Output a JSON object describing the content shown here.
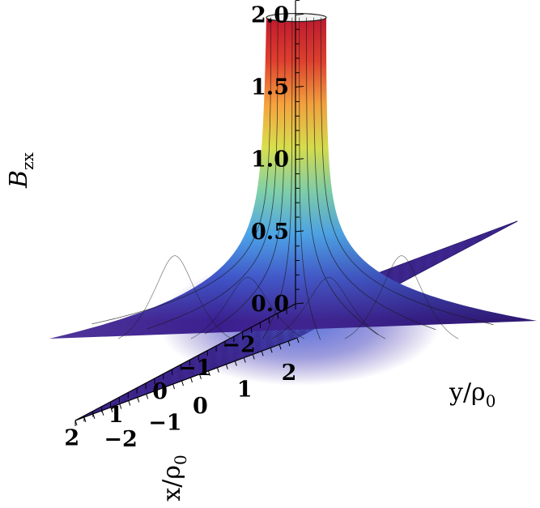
{
  "chart_data": {
    "type": "surface3d",
    "zlabel": "B",
    "zlabel_sub": "zx",
    "xlabel": "x/ρ",
    "xlabel_sub": "0",
    "ylabel": "y/ρ",
    "ylabel_sub": "0",
    "xlim": [
      -2.5,
      2.5
    ],
    "ylim": [
      -2.5,
      2.5
    ],
    "zlim": [
      0,
      2.1
    ],
    "x_ticks": [
      "−2",
      "−1",
      "0",
      "1",
      "2"
    ],
    "y_ticks": [
      "−2",
      "−1",
      "0",
      "1",
      "2"
    ],
    "z_ticks": [
      "0.0",
      "0.5",
      "1.0",
      "1.5",
      "2.0"
    ],
    "z_tick_values": [
      0,
      0.5,
      1.0,
      1.5,
      2.0
    ],
    "x_tick_values": [
      -2,
      -1,
      0,
      1,
      2
    ],
    "y_tick_values": [
      -2,
      -1,
      0,
      1,
      2
    ],
    "peak_location": [
      0,
      0
    ],
    "peak_clipped_at": 2.1,
    "baseline_value": 0.0,
    "colormap": [
      "#3b1f8f",
      "#3f55c8",
      "#4aa3e8",
      "#7ed0a8",
      "#d9e04a",
      "#f7a23a",
      "#e23b2a",
      "#c0142a"
    ],
    "floor_color": "#4a2fa3",
    "mesh_color": "#1a1a1a"
  }
}
